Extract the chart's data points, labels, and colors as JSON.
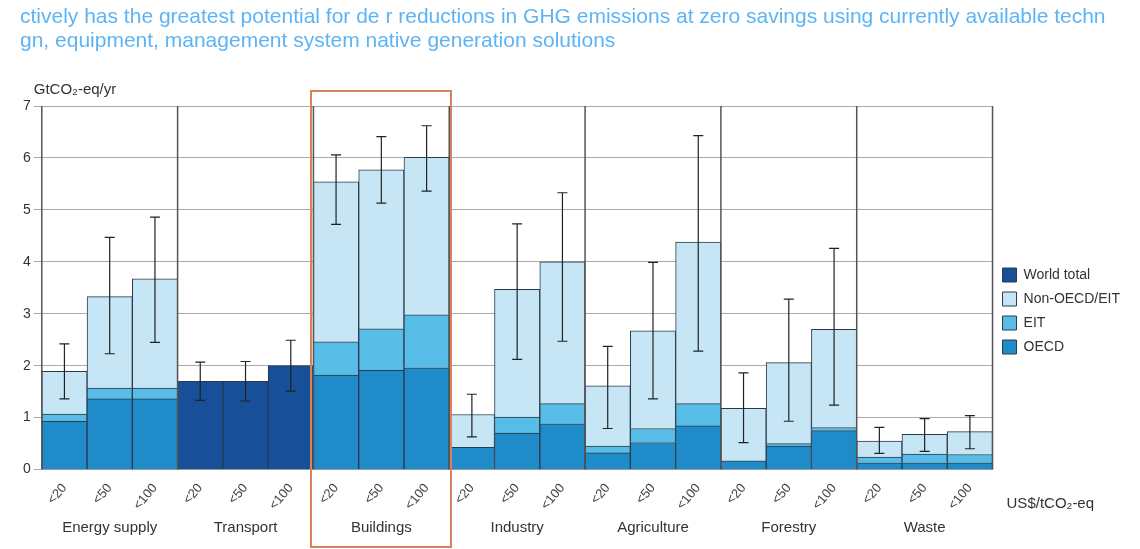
{
  "chart_data": {
    "type": "bar",
    "stacked": true,
    "subtitle": "ctively has the greatest potential for de r reductions in GHG emissions at zero savings using currently available techn gn, equipment, management system native generation solutions",
    "ylabel": "GtCO₂-eq/yr",
    "xlabel": "US$/tCO₂-eq",
    "categories": [
      "<20",
      "<50",
      "<100",
      "<20",
      "<50",
      "<100",
      "<20",
      "<50",
      "<100",
      "<20",
      "<50",
      "<100",
      "<20",
      "<50",
      "<100",
      "<20",
      "<50",
      "<100",
      "<20",
      "<50",
      "<100"
    ],
    "annotations": [
      "Energy supply",
      "Transport",
      "Buildings",
      "Industry",
      "Agriculture",
      "Forestry",
      "Waste"
    ],
    "series": [
      {
        "name": "OECD",
        "color": "#1f8bc9",
        "values": [
          0.93,
          1.36,
          1.36,
          null,
          null,
          null,
          1.82,
          1.91,
          1.96,
          0.43,
          0.7,
          0.88,
          0.32,
          0.52,
          0.84,
          0.17,
          0.45,
          0.75,
          0.13,
          0.13,
          0.13
        ]
      },
      {
        "name": "EIT",
        "color": "#58bde6",
        "values": [
          0.14,
          0.21,
          0.21,
          null,
          null,
          null,
          0.64,
          0.8,
          1.02,
          0,
          0.31,
          0.39,
          0.13,
          0.27,
          0.43,
          0,
          0.05,
          0.06,
          0.11,
          0.17,
          0.16
        ]
      },
      {
        "name": "Non-OECD/EIT",
        "color": "#c6e6f6",
        "values": [
          0.82,
          1.76,
          2.1,
          null,
          null,
          null,
          3.08,
          3.06,
          3.03,
          0.63,
          2.46,
          2.73,
          1.16,
          1.88,
          3.11,
          1.01,
          1.56,
          1.89,
          0.31,
          0.38,
          0.44
        ],
        "errors": [
          [
            1.36,
            2.42
          ],
          [
            2.23,
            4.47
          ],
          [
            2.45,
            4.86
          ],
          null,
          null,
          null,
          [
            4.72,
            6.06
          ],
          [
            5.13,
            6.41
          ],
          [
            5.36,
            6.62
          ],
          [
            0.63,
            1.45
          ],
          [
            2.12,
            4.73
          ],
          [
            2.47,
            5.33
          ],
          [
            0.79,
            2.37
          ],
          [
            1.36,
            3.99
          ],
          [
            2.28,
            6.43
          ],
          [
            0.52,
            1.86
          ],
          [
            0.93,
            3.28
          ],
          [
            1.24,
            4.26
          ],
          [
            0.31,
            0.81
          ],
          [
            0.35,
            0.98
          ],
          [
            0.4,
            1.04
          ]
        ]
      },
      {
        "name": "World total",
        "color": "#184f99",
        "values": [
          null,
          null,
          null,
          1.7,
          1.7,
          2.0,
          null,
          null,
          null,
          null,
          null,
          null,
          null,
          null,
          null,
          null,
          null,
          null,
          null,
          null,
          null
        ],
        "errors": [
          null,
          null,
          null,
          0.37,
          0.38,
          0.49,
          null,
          null,
          null,
          null,
          null,
          null,
          null,
          null,
          null,
          null,
          null,
          null,
          null,
          null,
          null
        ]
      }
    ],
    "ylim": [
      0,
      7
    ],
    "yticks": [
      0,
      1,
      2,
      3,
      4,
      5,
      6,
      7
    ],
    "grid": "y",
    "legend": "right"
  }
}
